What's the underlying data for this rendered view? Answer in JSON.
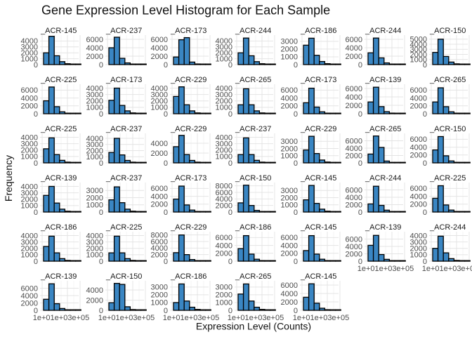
{
  "chart_data": {
    "type": "histogram-facets",
    "title": "Gene Expression Level Histogram for Each Sample",
    "xlabel": "Expression Level (Counts)",
    "ylabel": "Frequency",
    "x_tick_label_bottom_row": "1e+01e+03e+05",
    "bar_color": "#3a86c3",
    "bins": 7,
    "facets": [
      {
        "label": "_ACR-145",
        "ymax": 5000,
        "yticks": [
          "4000",
          "3000",
          "2000",
          "1000",
          "0"
        ],
        "ytick_values": [
          4000,
          3000,
          2000,
          1000,
          0
        ],
        "values": [
          2000,
          4800,
          1500,
          500,
          150,
          40,
          10
        ]
      },
      {
        "label": "_ACR-237",
        "ymax": 7000,
        "yticks": [
          "6000",
          "4000",
          "2000",
          "0"
        ],
        "ytick_values": [
          6000,
          4000,
          2000,
          0
        ],
        "values": [
          4000,
          6500,
          1500,
          400,
          100,
          30,
          10
        ]
      },
      {
        "label": "_ACR-173",
        "ymax": 7000,
        "yticks": [
          "6000",
          "4000",
          "2000",
          "0"
        ],
        "ytick_values": [
          6000,
          4000,
          2000,
          0
        ],
        "values": [
          1800,
          5900,
          6400,
          600,
          150,
          40,
          10
        ]
      },
      {
        "label": "_ACR-244",
        "ymax": 5000,
        "yticks": [
          "4000",
          "3000",
          "2000",
          "1000",
          "0"
        ],
        "ytick_values": [
          4000,
          3000,
          2000,
          1000,
          0
        ],
        "values": [
          2000,
          4500,
          1500,
          500,
          150,
          40,
          10
        ]
      },
      {
        "label": "_ACR-186",
        "ymax": 3800,
        "yticks": [
          "3000",
          "2000",
          "1000",
          "0"
        ],
        "ytick_values": [
          3000,
          2000,
          1000,
          0
        ],
        "values": [
          2500,
          3400,
          1200,
          400,
          120,
          30,
          10
        ]
      },
      {
        "label": "_ACR-244",
        "ymax": 7000,
        "yticks": [
          "6000",
          "4000",
          "2000",
          "0"
        ],
        "ytick_values": [
          6000,
          4000,
          2000,
          0
        ],
        "values": [
          2800,
          6300,
          1600,
          400,
          120,
          30,
          10
        ]
      },
      {
        "label": "_ACR-150",
        "ymax": 5800,
        "yticks": [
          "5000",
          "4000",
          "3000",
          "2000",
          "1000",
          "0"
        ],
        "ytick_values": [
          5000,
          4000,
          3000,
          2000,
          1000,
          0
        ],
        "values": [
          2400,
          5000,
          1600,
          500,
          150,
          40,
          10
        ]
      },
      {
        "label": "_ACR-225",
        "ymax": 7500,
        "yticks": [
          "6000",
          "4000",
          "2000",
          "0"
        ],
        "ytick_values": [
          6000,
          4000,
          2000,
          0
        ],
        "values": [
          3300,
          6800,
          1800,
          500,
          150,
          40,
          10
        ]
      },
      {
        "label": "_ACR-173",
        "ymax": 4600,
        "yticks": [
          "4000",
          "3000",
          "2000",
          "1000",
          "0"
        ],
        "ytick_values": [
          4000,
          3000,
          2000,
          1000,
          0
        ],
        "values": [
          2100,
          4000,
          1300,
          450,
          130,
          30,
          10
        ]
      },
      {
        "label": "_ACR-229",
        "ymax": 4600,
        "yticks": [
          "4000",
          "3000",
          "2000",
          "1000",
          "0"
        ],
        "ytick_values": [
          4000,
          3000,
          2000,
          1000,
          0
        ],
        "values": [
          2700,
          4200,
          1400,
          450,
          130,
          30,
          10
        ]
      },
      {
        "label": "_ACR-265",
        "ymax": 4600,
        "yticks": [
          "4000",
          "3000",
          "2000",
          "1000",
          "0"
        ],
        "ytick_values": [
          4000,
          3000,
          2000,
          1000,
          0
        ],
        "values": [
          1400,
          3900,
          1400,
          450,
          130,
          30,
          10
        ]
      },
      {
        "label": "_ACR-173",
        "ymax": 7500,
        "yticks": [
          "6000",
          "4000",
          "2000",
          "0"
        ],
        "ytick_values": [
          6000,
          4000,
          2000,
          0
        ],
        "values": [
          2800,
          6500,
          1700,
          500,
          150,
          40,
          10
        ]
      },
      {
        "label": "_ACR-139",
        "ymax": 7000,
        "yticks": [
          "6000",
          "4000",
          "2000",
          "0"
        ],
        "ytick_values": [
          6000,
          4000,
          2000,
          0
        ],
        "values": [
          2800,
          6300,
          1700,
          500,
          150,
          40,
          10
        ]
      },
      {
        "label": "_ACR-265",
        "ymax": 7500,
        "yticks": [
          "6000",
          "4000",
          "2000",
          "0"
        ],
        "ytick_values": [
          6000,
          4000,
          2000,
          0
        ],
        "values": [
          3000,
          6600,
          1800,
          500,
          150,
          40,
          10
        ]
      },
      {
        "label": "_ACR-225",
        "ymax": 4600,
        "yticks": [
          "4000",
          "3000",
          "2000",
          "1000",
          "0"
        ],
        "ytick_values": [
          4000,
          3000,
          2000,
          1000,
          0
        ],
        "values": [
          2200,
          3900,
          1300,
          400,
          120,
          30,
          10
        ]
      },
      {
        "label": "_ACR-237",
        "ymax": 4800,
        "yticks": [
          "4000",
          "3000",
          "2000",
          "1000",
          "0"
        ],
        "ytick_values": [
          4000,
          3000,
          2000,
          1000,
          0
        ],
        "values": [
          1700,
          4000,
          1300,
          400,
          120,
          30,
          10
        ]
      },
      {
        "label": "_ACR-229",
        "ymax": 6000,
        "yticks": [
          "4000",
          "2000",
          "0"
        ],
        "ytick_values": [
          4000,
          2000,
          0
        ],
        "values": [
          3300,
          5600,
          1700,
          500,
          150,
          40,
          10
        ]
      },
      {
        "label": "_ACR-237",
        "ymax": 4600,
        "yticks": [
          "4000",
          "3000",
          "2000",
          "1000",
          "0"
        ],
        "ytick_values": [
          4000,
          3000,
          2000,
          1000,
          0
        ],
        "values": [
          1300,
          3900,
          1300,
          400,
          120,
          30,
          10
        ]
      },
      {
        "label": "_ACR-229",
        "ymax": 4100,
        "yticks": [
          "3000",
          "2000",
          "1000",
          "0"
        ],
        "ytick_values": [
          3000,
          2000,
          1000,
          0
        ],
        "values": [
          1800,
          3700,
          1300,
          400,
          120,
          30,
          10
        ]
      },
      {
        "label": "_ACR-265",
        "ymax": 8000,
        "yticks": [
          "6000",
          "4000",
          "2000",
          "0"
        ],
        "ytick_values": [
          6000,
          4000,
          2000,
          0
        ],
        "values": [
          2400,
          7300,
          4200,
          500,
          150,
          40,
          10
        ]
      },
      {
        "label": "_ACR-150",
        "ymax": 7500,
        "yticks": [
          "6000",
          "4000",
          "2000",
          "0"
        ],
        "ytick_values": [
          6000,
          4000,
          2000,
          0
        ],
        "values": [
          3300,
          6700,
          1800,
          500,
          150,
          40,
          10
        ]
      },
      {
        "label": "_ACR-139",
        "ymax": 4600,
        "yticks": [
          "4000",
          "3000",
          "2000",
          "1000",
          "0"
        ],
        "ytick_values": [
          4000,
          3000,
          2000,
          1000,
          0
        ],
        "values": [
          2600,
          4000,
          1400,
          450,
          130,
          30,
          10
        ]
      },
      {
        "label": "_ACR-237",
        "ymax": 4100,
        "yticks": [
          "3000",
          "2000",
          "1000",
          "0"
        ],
        "ytick_values": [
          3000,
          2000,
          1000,
          0
        ],
        "values": [
          1700,
          3500,
          1300,
          400,
          120,
          30,
          10
        ]
      },
      {
        "label": "_ACR-173",
        "ymax": 7500,
        "yticks": [
          "6000",
          "4000",
          "2000",
          "0"
        ],
        "ytick_values": [
          6000,
          4000,
          2000,
          0
        ],
        "values": [
          3300,
          6600,
          1800,
          500,
          150,
          40,
          10
        ]
      },
      {
        "label": "_ACR-150",
        "ymax": 9000,
        "yticks": [
          "8000",
          "6000",
          "4000",
          "2000",
          "0"
        ],
        "ytick_values": [
          8000,
          6000,
          4000,
          2000,
          0
        ],
        "values": [
          2800,
          8200,
          2000,
          500,
          150,
          40,
          10
        ]
      },
      {
        "label": "_ACR-145",
        "ymax": 4100,
        "yticks": [
          "3000",
          "2000",
          "1000",
          "0"
        ],
        "ytick_values": [
          3000,
          2000,
          1000,
          0
        ],
        "values": [
          1700,
          3700,
          1200,
          400,
          120,
          30,
          10
        ]
      },
      {
        "label": "_ACR-244",
        "ymax": 8000,
        "yticks": [
          "6000",
          "4000",
          "2000",
          "0"
        ],
        "ytick_values": [
          6000,
          4000,
          2000,
          0
        ],
        "values": [
          2200,
          7000,
          1800,
          500,
          150,
          40,
          10
        ]
      },
      {
        "label": "_ACR-225",
        "ymax": 7500,
        "yticks": [
          "6000",
          "4000",
          "2000",
          "0"
        ],
        "ytick_values": [
          6000,
          4000,
          2000,
          0
        ],
        "values": [
          3500,
          6700,
          1800,
          500,
          150,
          40,
          10
        ]
      },
      {
        "label": "_ACR-186",
        "ymax": 4600,
        "yticks": [
          "4000",
          "3000",
          "2000",
          "1000",
          "0"
        ],
        "ytick_values": [
          4000,
          3000,
          2000,
          1000,
          0
        ],
        "values": [
          2300,
          3900,
          1300,
          400,
          120,
          30,
          10
        ]
      },
      {
        "label": "_ACR-225",
        "ymax": 4600,
        "yticks": [
          "4000",
          "3000",
          "2000",
          "1000",
          "0"
        ],
        "ytick_values": [
          4000,
          3000,
          2000,
          1000,
          0
        ],
        "values": [
          1300,
          3900,
          1300,
          400,
          120,
          30,
          10
        ]
      },
      {
        "label": "_ACR-229",
        "ymax": 9000,
        "yticks": [
          "8000",
          "6000",
          "4000",
          "2000",
          "0"
        ],
        "ytick_values": [
          8000,
          6000,
          4000,
          2000,
          0
        ],
        "values": [
          2600,
          8000,
          2000,
          500,
          150,
          40,
          10
        ]
      },
      {
        "label": "_ACR-186",
        "ymax": 7500,
        "yticks": [
          "6000",
          "4000",
          "2000",
          "0"
        ],
        "ytick_values": [
          6000,
          4000,
          2000,
          0
        ],
        "values": [
          3200,
          6500,
          1800,
          500,
          150,
          40,
          10
        ]
      },
      {
        "label": "_ACR-145",
        "ymax": 7500,
        "yticks": [
          "6000",
          "4000",
          "2000",
          "0"
        ],
        "ytick_values": [
          6000,
          4000,
          2000,
          0
        ],
        "values": [
          2700,
          6500,
          1800,
          500,
          150,
          40,
          10
        ]
      },
      {
        "label": "_ACR-139",
        "ymax": 8000,
        "yticks": [
          "6000",
          "4000",
          "2000",
          "0"
        ],
        "ytick_values": [
          6000,
          4000,
          2000,
          0
        ],
        "values": [
          4300,
          7000,
          1800,
          500,
          150,
          40,
          10
        ]
      },
      {
        "label": "_ACR-244",
        "ymax": 4600,
        "yticks": [
          "4000",
          "3000",
          "2000",
          "1000",
          "0"
        ],
        "ytick_values": [
          4000,
          3000,
          2000,
          1000,
          0
        ],
        "values": [
          2000,
          3900,
          1300,
          400,
          120,
          30,
          10
        ]
      },
      {
        "label": "_ACR-139",
        "ymax": 8000,
        "yticks": [
          "6000",
          "4000",
          "2000",
          "0"
        ],
        "ytick_values": [
          6000,
          4000,
          2000,
          0
        ],
        "values": [
          3000,
          7200,
          1800,
          500,
          150,
          40,
          10
        ]
      },
      {
        "label": "_ACR-150",
        "ymax": 5800,
        "yticks": [
          "4000",
          "2000",
          "0"
        ],
        "ytick_values": [
          4000,
          2000,
          0
        ],
        "values": [
          1500,
          5300,
          5100,
          700,
          150,
          40,
          10
        ]
      },
      {
        "label": "_ACR-186",
        "ymax": 3800,
        "yticks": [
          "3000",
          "2000",
          "1000",
          "0"
        ],
        "ytick_values": [
          3000,
          2000,
          1000,
          0
        ],
        "values": [
          1000,
          3400,
          1200,
          400,
          120,
          30,
          10
        ]
      },
      {
        "label": "_ACR-265",
        "ymax": 3800,
        "yticks": [
          "3000",
          "2000",
          "1000",
          "0"
        ],
        "ytick_values": [
          3000,
          2000,
          1000,
          0
        ],
        "values": [
          2100,
          3400,
          1200,
          400,
          120,
          30,
          10
        ]
      },
      {
        "label": "_ACR-145",
        "ymax": 7000,
        "yticks": [
          "6000",
          "4000",
          "2000",
          "0"
        ],
        "ytick_values": [
          6000,
          4000,
          2000,
          0
        ],
        "values": [
          3100,
          6300,
          1700,
          500,
          150,
          40,
          10
        ]
      }
    ]
  }
}
